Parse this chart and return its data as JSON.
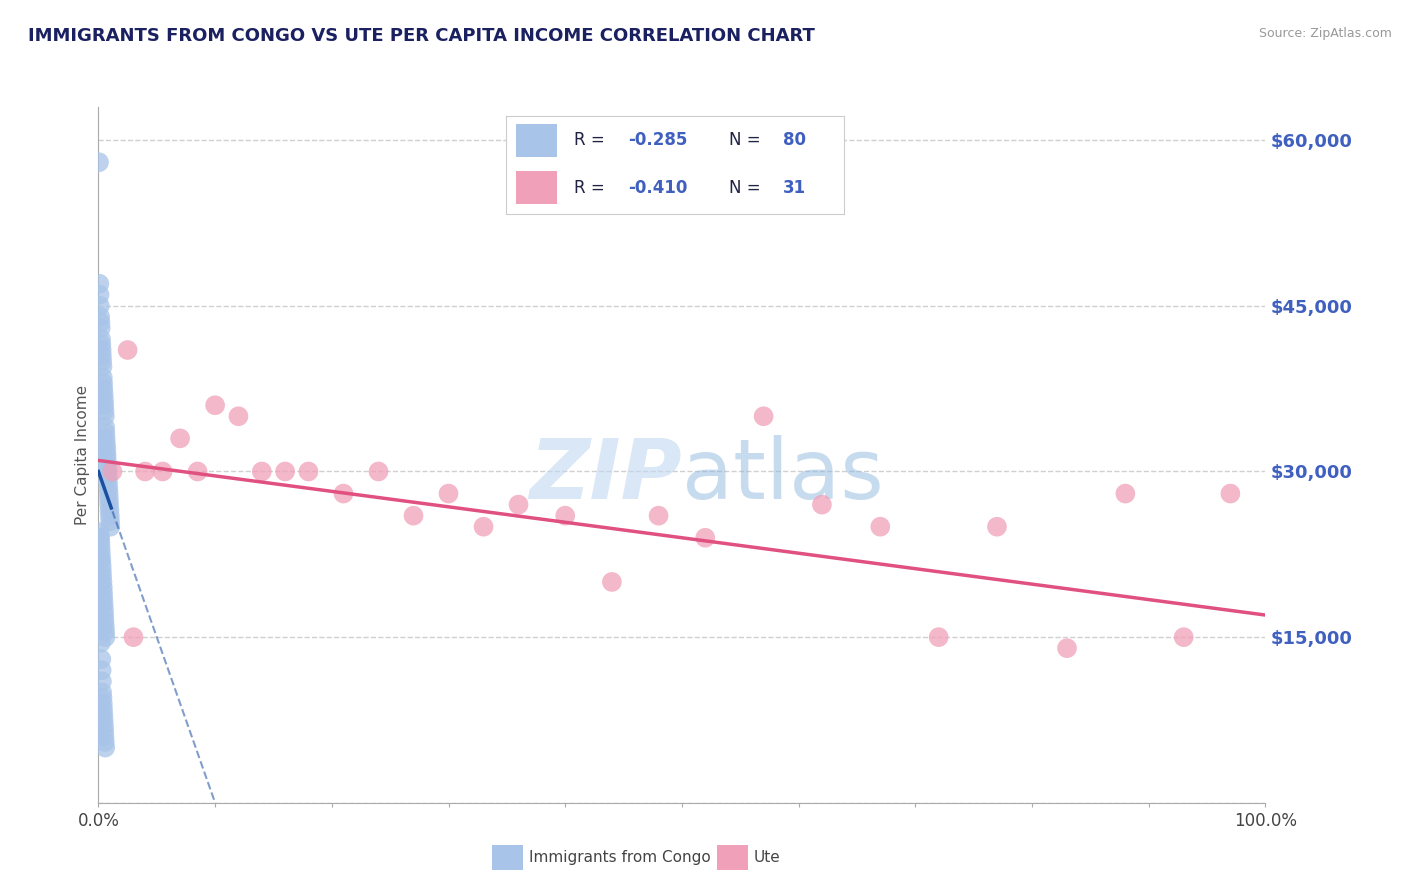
{
  "title": "IMMIGRANTS FROM CONGO VS UTE PER CAPITA INCOME CORRELATION CHART",
  "source": "Source: ZipAtlas.com",
  "ylabel": "Per Capita Income",
  "r_congo": -0.285,
  "n_congo": 80,
  "r_ute": -0.41,
  "n_ute": 31,
  "yticks": [
    0,
    15000,
    30000,
    45000,
    60000
  ],
  "ytick_labels": [
    "",
    "$15,000",
    "$30,000",
    "$45,000",
    "$60,000"
  ],
  "color_congo": "#a8c4e8",
  "color_ute": "#f0a0b8",
  "color_congo_line": "#1a4fa0",
  "color_ute_line": "#e05080",
  "watermark_color": "#c0d8f0",
  "congo_x": [
    0.05,
    0.08,
    0.1,
    0.12,
    0.15,
    0.18,
    0.2,
    0.22,
    0.25,
    0.28,
    0.3,
    0.32,
    0.35,
    0.38,
    0.4,
    0.42,
    0.45,
    0.48,
    0.5,
    0.52,
    0.55,
    0.58,
    0.6,
    0.62,
    0.65,
    0.68,
    0.7,
    0.72,
    0.75,
    0.78,
    0.8,
    0.82,
    0.85,
    0.88,
    0.9,
    0.92,
    0.95,
    0.98,
    1.0,
    1.02,
    0.1,
    0.15,
    0.18,
    0.2,
    0.22,
    0.25,
    0.28,
    0.3,
    0.32,
    0.35,
    0.38,
    0.4,
    0.42,
    0.45,
    0.48,
    0.5,
    0.52,
    0.55,
    0.58,
    0.6,
    0.1,
    0.12,
    0.15,
    0.18,
    0.2,
    0.22,
    0.25,
    0.28,
    0.3,
    0.32,
    0.35,
    0.38,
    0.4,
    0.42,
    0.45,
    0.48,
    0.5,
    0.52,
    0.55,
    0.58
  ],
  "congo_y": [
    58000,
    47000,
    46000,
    45000,
    44000,
    43500,
    43000,
    42000,
    41500,
    41000,
    40500,
    40000,
    39500,
    38500,
    38000,
    37500,
    37000,
    36500,
    36000,
    35500,
    35000,
    34000,
    33500,
    33000,
    32500,
    32000,
    31500,
    31000,
    30500,
    30000,
    29500,
    29000,
    28500,
    28000,
    27500,
    27000,
    26500,
    26000,
    25500,
    25000,
    24500,
    24000,
    23500,
    23000,
    22500,
    22000,
    21500,
    21000,
    20500,
    20000,
    19500,
    19000,
    18500,
    18000,
    17500,
    17000,
    16500,
    16000,
    15500,
    15000,
    24000,
    22000,
    20000,
    18000,
    16000,
    14500,
    13000,
    12000,
    11000,
    10000,
    9500,
    9000,
    8500,
    8000,
    7500,
    7000,
    6500,
    6000,
    5500,
    5000
  ],
  "ute_x": [
    1.2,
    2.5,
    4.0,
    5.5,
    7.0,
    8.5,
    10.0,
    12.0,
    14.0,
    16.0,
    18.0,
    21.0,
    24.0,
    27.0,
    30.0,
    33.0,
    36.0,
    40.0,
    44.0,
    48.0,
    52.0,
    57.0,
    62.0,
    67.0,
    72.0,
    77.0,
    83.0,
    88.0,
    93.0,
    97.0,
    3.0
  ],
  "ute_y": [
    30000,
    41000,
    30000,
    30000,
    33000,
    30000,
    36000,
    35000,
    30000,
    30000,
    30000,
    28000,
    30000,
    26000,
    28000,
    25000,
    27000,
    26000,
    20000,
    26000,
    24000,
    35000,
    27000,
    25000,
    15000,
    25000,
    14000,
    28000,
    15000,
    28000,
    15000
  ],
  "xmin": 0.0,
  "xmax": 100.0,
  "ymin": 0,
  "ymax": 63000,
  "background_color": "#ffffff",
  "grid_color": "#d0d0d0"
}
